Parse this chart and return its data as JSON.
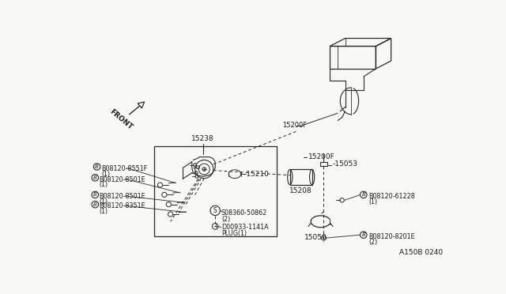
{
  "bg_color": "#f8f8f5",
  "line_color": "#2a2a2a",
  "text_color": "#1a1a1a",
  "diagram_code": "A150B 0240",
  "labels": {
    "15200F_top": "15200F",
    "15200F_mid": "15200F",
    "15238": "15238",
    "15210": "-15210",
    "15208": "15208",
    "15053": "-15053",
    "15050": "15050",
    "b08120_8551f": "B08120-8551F",
    "b08120_8501e_1": "B08120-8501E",
    "b08120_8501e_2": "B08120-8501E",
    "b08120_8351e": "B08120-8351E",
    "b08120_61228": "B08120-61228",
    "b08120_8201e": "B08120-8201E",
    "s08360_50862": "S08360-50862",
    "d00933_line1": "D00933-1141A",
    "d00933_line2": "PLUG(1)",
    "front": "FRONT",
    "qty1": "(1)",
    "qty2": "(2)"
  }
}
